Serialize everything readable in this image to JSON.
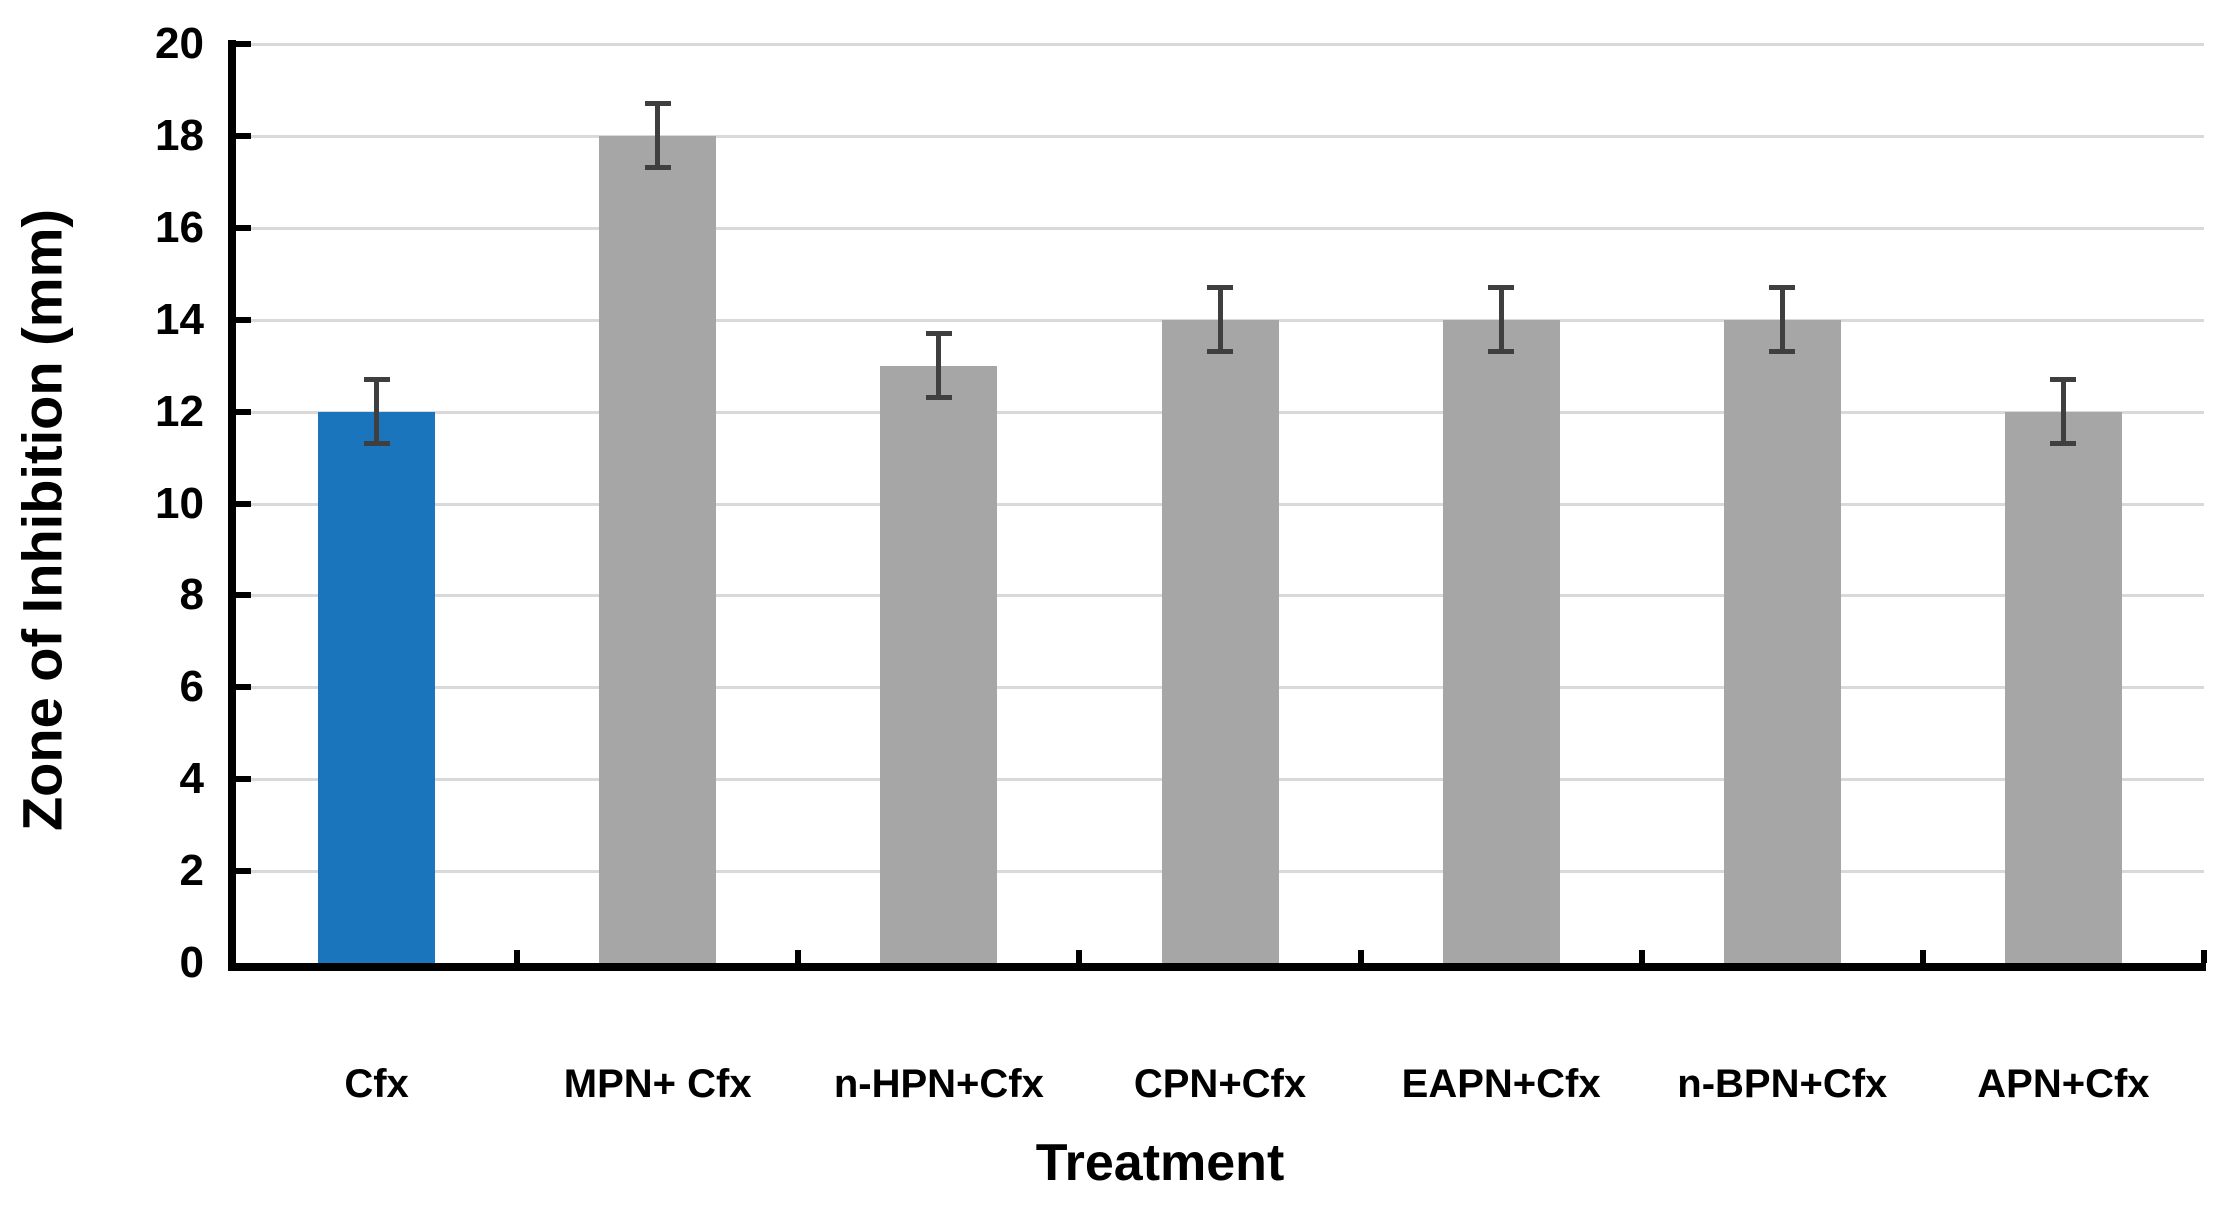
{
  "chart_data": {
    "type": "bar",
    "title": "",
    "xlabel": "Treatment",
    "ylabel": "Zone of Inhibition (mm)",
    "categories": [
      "Cfx",
      "MPN+ Cfx",
      "n-HPN+Cfx",
      "CPN+Cfx",
      "EAPN+Cfx",
      "n-BPN+Cfx",
      "APN+Cfx"
    ],
    "values": [
      12,
      18,
      13,
      14,
      14,
      14,
      12
    ],
    "error_bars": [
      0.75,
      0.75,
      0.75,
      0.75,
      0.75,
      0.75,
      0.75
    ],
    "bar_colors": [
      "#1B75BC",
      "#A6A6A6",
      "#A6A6A6",
      "#A6A6A6",
      "#A6A6A6",
      "#A6A6A6",
      "#A6A6A6"
    ],
    "highlight_index": 0,
    "ylim": [
      0,
      20
    ],
    "ytick_step": 2,
    "ytick_labels": [
      "0",
      "2",
      "4",
      "6",
      "8",
      "10",
      "12",
      "14",
      "16",
      "18",
      "20"
    ],
    "grid": true,
    "legend": false,
    "colors": {
      "highlight_bar": "#1B75BC",
      "default_bar": "#A6A6A6",
      "error_bar": "#3F3F3F",
      "gridline": "#D9D9D9",
      "axis": "#000000",
      "text": "#000000",
      "background": "#FFFFFF"
    }
  }
}
